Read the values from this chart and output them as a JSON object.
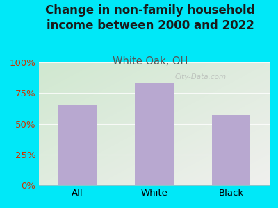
{
  "title": "Change in non-family household\nincome between 2000 and 2022",
  "subtitle": "White Oak, OH",
  "categories": [
    "All",
    "White",
    "Black"
  ],
  "values": [
    65,
    83,
    57
  ],
  "bar_color": "#b8a8d0",
  "title_color": "#1a1a1a",
  "subtitle_color": "#555555",
  "tick_label_color": "#cc3300",
  "background_outer": "#00e8f8",
  "background_inner_topleft": "#d0e8d0",
  "background_inner_bottomright": "#f0f0ee",
  "ylim": [
    0,
    100
  ],
  "yticks": [
    0,
    25,
    50,
    75,
    100
  ],
  "ytick_labels": [
    "0%",
    "25%",
    "50%",
    "75%",
    "100%"
  ],
  "watermark": "City-Data.com",
  "title_fontsize": 12,
  "subtitle_fontsize": 10.5,
  "tick_fontsize": 9.5
}
